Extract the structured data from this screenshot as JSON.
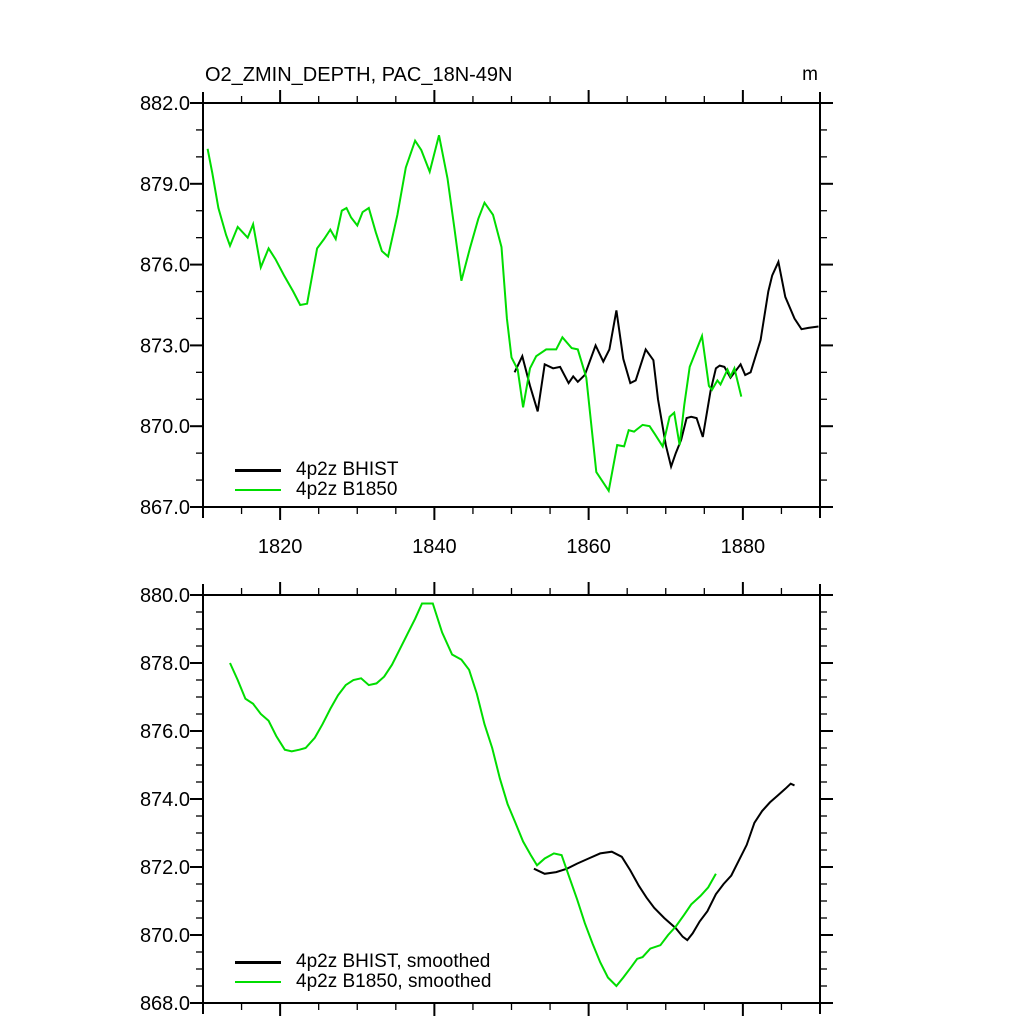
{
  "title": "O2_ZMIN_DEPTH, PAC_18N-49N",
  "unit": "m",
  "colors": {
    "bhist": "#000000",
    "b1850": "#00DD00",
    "axis": "#000000"
  },
  "chart_data": [
    {
      "type": "line",
      "panel": "top",
      "title": "O2_ZMIN_DEPTH, PAC_18N-49N",
      "unit": "m",
      "xlim": [
        1810,
        1890
      ],
      "ylim": [
        867,
        882
      ],
      "x_major": [
        1820,
        1840,
        1860,
        1880
      ],
      "x_minor_step": 5,
      "y_major_step": 3,
      "y_minor_step": 1,
      "x_tick_labels": [
        "1820",
        "1840",
        "1860",
        "1880"
      ],
      "y_tick_labels": [
        "882.0",
        "879.0",
        "876.0",
        "873.0",
        "870.0",
        "867.0"
      ],
      "grid": false,
      "legend_position": "lower-left-inside",
      "series": [
        {
          "name": "4p2z BHIST",
          "color": "#000000",
          "points": [
            [
              1850.4,
              872.0
            ],
            [
              1851.4,
              872.6
            ],
            [
              1852.4,
              871.5
            ],
            [
              1853.4,
              870.55
            ],
            [
              1854.3,
              872.3
            ],
            [
              1855.4,
              872.15
            ],
            [
              1856.3,
              872.2
            ],
            [
              1857.4,
              871.6
            ],
            [
              1858.0,
              871.85
            ],
            [
              1858.6,
              871.65
            ],
            [
              1859.5,
              871.9
            ],
            [
              1860.9,
              873.0
            ],
            [
              1861.9,
              872.4
            ],
            [
              1862.7,
              872.85
            ],
            [
              1863.6,
              874.3
            ],
            [
              1864.5,
              872.5
            ],
            [
              1865.4,
              871.6
            ],
            [
              1866.1,
              871.7
            ],
            [
              1867.4,
              872.85
            ],
            [
              1868.4,
              872.45
            ],
            [
              1869.0,
              871.0
            ],
            [
              1870.0,
              869.3
            ],
            [
              1870.7,
              868.5
            ],
            [
              1871.3,
              869.0
            ],
            [
              1872.0,
              869.5
            ],
            [
              1872.7,
              870.3
            ],
            [
              1873.3,
              870.35
            ],
            [
              1874.0,
              870.3
            ],
            [
              1874.8,
              869.6
            ],
            [
              1875.8,
              871.3
            ],
            [
              1876.5,
              872.15
            ],
            [
              1877.0,
              872.25
            ],
            [
              1877.6,
              872.2
            ],
            [
              1878.4,
              871.8
            ],
            [
              1879.7,
              872.3
            ],
            [
              1880.3,
              871.9
            ],
            [
              1881.0,
              872.0
            ],
            [
              1882.3,
              873.2
            ],
            [
              1883.3,
              875.0
            ],
            [
              1883.8,
              875.6
            ],
            [
              1884.6,
              876.1
            ],
            [
              1885.5,
              874.8
            ],
            [
              1886.7,
              874.0
            ],
            [
              1887.6,
              873.6
            ],
            [
              1888.5,
              873.65
            ],
            [
              1889.8,
              873.7
            ]
          ]
        },
        {
          "name": "4p2z B1850",
          "color": "#00DD00",
          "points": [
            [
              1810.6,
              880.3
            ],
            [
              1811.2,
              879.4
            ],
            [
              1812.0,
              878.1
            ],
            [
              1813.0,
              877.1
            ],
            [
              1813.5,
              876.7
            ],
            [
              1814.5,
              877.4
            ],
            [
              1815.8,
              877.0
            ],
            [
              1816.5,
              877.5
            ],
            [
              1817.5,
              875.9
            ],
            [
              1818.5,
              876.6
            ],
            [
              1819.4,
              876.2
            ],
            [
              1820.5,
              875.6
            ],
            [
              1821.7,
              875.0
            ],
            [
              1822.6,
              874.5
            ],
            [
              1823.5,
              874.55
            ],
            [
              1824.8,
              876.6
            ],
            [
              1825.7,
              876.95
            ],
            [
              1826.5,
              877.3
            ],
            [
              1827.2,
              876.95
            ],
            [
              1828.0,
              878.0
            ],
            [
              1828.6,
              878.1
            ],
            [
              1829.2,
              877.75
            ],
            [
              1830.0,
              877.45
            ],
            [
              1830.7,
              877.95
            ],
            [
              1831.5,
              878.1
            ],
            [
              1832.4,
              877.2
            ],
            [
              1833.2,
              876.5
            ],
            [
              1834.0,
              876.3
            ],
            [
              1835.2,
              877.85
            ],
            [
              1836.3,
              879.6
            ],
            [
              1837.5,
              880.6
            ],
            [
              1838.3,
              880.25
            ],
            [
              1839.4,
              879.45
            ],
            [
              1840.6,
              880.8
            ],
            [
              1841.7,
              879.2
            ],
            [
              1842.6,
              877.35
            ],
            [
              1843.5,
              875.4
            ],
            [
              1844.6,
              876.6
            ],
            [
              1845.7,
              877.7
            ],
            [
              1846.5,
              878.3
            ],
            [
              1847.6,
              877.85
            ],
            [
              1848.7,
              876.65
            ],
            [
              1849.4,
              874.0
            ],
            [
              1850.0,
              872.55
            ],
            [
              1850.8,
              872.1
            ],
            [
              1851.5,
              870.7
            ],
            [
              1852.4,
              872.15
            ],
            [
              1853.2,
              872.6
            ],
            [
              1854.5,
              872.85
            ],
            [
              1855.8,
              872.85
            ],
            [
              1856.6,
              873.3
            ],
            [
              1857.8,
              872.9
            ],
            [
              1858.6,
              872.85
            ],
            [
              1859.7,
              871.8
            ],
            [
              1861.0,
              868.3
            ],
            [
              1862.6,
              867.6
            ],
            [
              1863.7,
              869.3
            ],
            [
              1864.6,
              869.25
            ],
            [
              1865.2,
              869.85
            ],
            [
              1865.9,
              869.8
            ],
            [
              1867.0,
              870.05
            ],
            [
              1867.9,
              870.0
            ],
            [
              1868.6,
              869.7
            ],
            [
              1869.6,
              869.25
            ],
            [
              1870.5,
              870.35
            ],
            [
              1871.1,
              870.5
            ],
            [
              1871.8,
              869.3
            ],
            [
              1872.4,
              870.8
            ],
            [
              1873.1,
              872.2
            ],
            [
              1874.7,
              873.35
            ],
            [
              1875.6,
              871.5
            ],
            [
              1876.0,
              871.35
            ],
            [
              1876.7,
              871.7
            ],
            [
              1877.1,
              871.55
            ],
            [
              1878.0,
              872.1
            ],
            [
              1878.4,
              871.85
            ],
            [
              1878.9,
              872.15
            ],
            [
              1879.8,
              871.1
            ]
          ]
        }
      ]
    },
    {
      "type": "line",
      "panel": "bottom",
      "xlim": [
        1810,
        1890
      ],
      "ylim": [
        868,
        880
      ],
      "x_major": [
        1820,
        1840,
        1860,
        1880
      ],
      "x_minor_step": 5,
      "y_major_step": 2,
      "y_minor_step": 0.5,
      "x_tick_labels": [],
      "y_tick_labels": [
        "880.0",
        "878.0",
        "876.0",
        "874.0",
        "872.0",
        "870.0",
        "868.0"
      ],
      "grid": false,
      "legend_position": "lower-left-inside",
      "series": [
        {
          "name": "4p2z BHIST, smoothed",
          "color": "#000000",
          "points": [
            [
              1852.9,
              871.95
            ],
            [
              1854.3,
              871.8
            ],
            [
              1855.8,
              871.85
            ],
            [
              1857.2,
              871.95
            ],
            [
              1858.5,
              872.1
            ],
            [
              1860.0,
              872.25
            ],
            [
              1861.5,
              872.4
            ],
            [
              1863.0,
              872.45
            ],
            [
              1864.3,
              872.3
            ],
            [
              1865.4,
              871.9
            ],
            [
              1866.5,
              871.45
            ],
            [
              1867.5,
              871.1
            ],
            [
              1868.5,
              870.8
            ],
            [
              1869.8,
              870.5
            ],
            [
              1871.3,
              870.2
            ],
            [
              1872.2,
              869.95
            ],
            [
              1872.8,
              869.85
            ],
            [
              1873.5,
              870.05
            ],
            [
              1874.4,
              870.4
            ],
            [
              1875.4,
              870.7
            ],
            [
              1876.5,
              871.2
            ],
            [
              1877.5,
              871.5
            ],
            [
              1878.5,
              871.75
            ],
            [
              1879.5,
              872.2
            ],
            [
              1880.5,
              872.65
            ],
            [
              1881.5,
              873.3
            ],
            [
              1882.5,
              873.65
            ],
            [
              1883.5,
              873.9
            ],
            [
              1884.5,
              874.1
            ],
            [
              1885.5,
              874.3
            ],
            [
              1886.2,
              874.45
            ],
            [
              1886.7,
              874.4
            ]
          ]
        },
        {
          "name": "4p2z B1850, smoothed",
          "color": "#00DD00",
          "points": [
            [
              1813.5,
              878.0
            ],
            [
              1814.5,
              877.5
            ],
            [
              1815.5,
              876.95
            ],
            [
              1816.5,
              876.8
            ],
            [
              1817.5,
              876.5
            ],
            [
              1818.5,
              876.3
            ],
            [
              1819.5,
              875.85
            ],
            [
              1820.6,
              875.45
            ],
            [
              1821.5,
              875.4
            ],
            [
              1822.5,
              875.45
            ],
            [
              1823.3,
              875.5
            ],
            [
              1824.5,
              875.8
            ],
            [
              1825.5,
              876.2
            ],
            [
              1826.5,
              876.65
            ],
            [
              1827.5,
              877.05
            ],
            [
              1828.5,
              877.35
            ],
            [
              1829.5,
              877.5
            ],
            [
              1830.5,
              877.55
            ],
            [
              1831.5,
              877.35
            ],
            [
              1832.5,
              877.4
            ],
            [
              1833.5,
              877.6
            ],
            [
              1834.5,
              877.95
            ],
            [
              1835.5,
              878.4
            ],
            [
              1836.5,
              878.85
            ],
            [
              1837.5,
              879.3
            ],
            [
              1838.4,
              879.75
            ],
            [
              1839.8,
              879.75
            ],
            [
              1841.0,
              878.9
            ],
            [
              1842.3,
              878.25
            ],
            [
              1843.5,
              878.1
            ],
            [
              1844.5,
              877.8
            ],
            [
              1845.5,
              877.1
            ],
            [
              1846.5,
              876.2
            ],
            [
              1847.5,
              875.5
            ],
            [
              1848.5,
              874.6
            ],
            [
              1849.5,
              873.85
            ],
            [
              1850.5,
              873.3
            ],
            [
              1851.5,
              872.75
            ],
            [
              1852.5,
              872.35
            ],
            [
              1853.3,
              872.05
            ],
            [
              1854.3,
              872.25
            ],
            [
              1855.5,
              872.4
            ],
            [
              1856.5,
              872.35
            ],
            [
              1857.5,
              871.7
            ],
            [
              1858.5,
              871.05
            ],
            [
              1859.5,
              870.35
            ],
            [
              1860.5,
              869.75
            ],
            [
              1861.5,
              869.2
            ],
            [
              1862.5,
              868.75
            ],
            [
              1863.6,
              868.5
            ],
            [
              1864.5,
              868.75
            ],
            [
              1865.5,
              869.05
            ],
            [
              1866.3,
              869.3
            ],
            [
              1867.0,
              869.35
            ],
            [
              1868.0,
              869.6
            ],
            [
              1869.3,
              869.7
            ],
            [
              1870.3,
              870.0
            ],
            [
              1871.3,
              870.25
            ],
            [
              1872.4,
              870.6
            ],
            [
              1873.3,
              870.9
            ],
            [
              1874.5,
              871.15
            ],
            [
              1875.5,
              871.4
            ],
            [
              1876.5,
              871.8
            ]
          ]
        }
      ]
    }
  ]
}
